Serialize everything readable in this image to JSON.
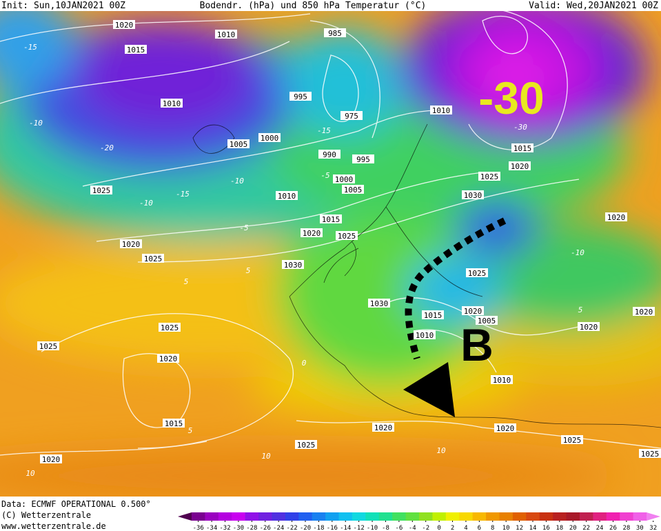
{
  "header": {
    "init": "Init: Sun,10JAN2021 00Z",
    "title": "Bodendr. (hPa) und 850 hPa Temperatur (°C)",
    "valid": "Valid: Wed,20JAN2021 00Z"
  },
  "annotations": {
    "temperature": "-30",
    "marker": "B"
  },
  "isobar_labels": [
    "1020",
    "1010",
    "1015",
    "985",
    "1010",
    "995",
    "975",
    "1010",
    "1005",
    "1000",
    "990",
    "995",
    "1015",
    "1020",
    "1025",
    "1000",
    "1005",
    "1010",
    "1025",
    "1030",
    "1020",
    "1015",
    "1020",
    "1025",
    "1020",
    "1025",
    "1030",
    "1025",
    "1030",
    "1020",
    "1015",
    "1005",
    "1020",
    "1020",
    "1010",
    "1025",
    "1025",
    "1020",
    "1010",
    "1015",
    "1020",
    "1025",
    "1020",
    "1025",
    "1020",
    "1025"
  ],
  "temperature_labels": [
    "-15",
    "-10",
    "-20",
    "-15",
    "-10",
    "-10",
    "-5",
    "-5",
    "-15",
    "-30",
    "-10",
    "5",
    "5",
    "5",
    "10",
    "10",
    "10",
    "0",
    "5"
  ],
  "footer": {
    "data": "Data: ECMWF OPERATIONAL 0.500°",
    "copyright": "(C) Wetterzentrale",
    "url": "www.wetterzentrale.de"
  },
  "colorbar": {
    "ticks": [
      -36,
      -34,
      -32,
      -30,
      -28,
      -26,
      -24,
      -22,
      -20,
      -18,
      -16,
      -14,
      -12,
      -10,
      -8,
      -6,
      -4,
      -2,
      0,
      2,
      4,
      6,
      8,
      10,
      12,
      14,
      16,
      18,
      20,
      22,
      24,
      26,
      28,
      30,
      32
    ],
    "colors": [
      "#500050",
      "#7a0090",
      "#9a00c0",
      "#b400e0",
      "#c800f0",
      "#9010e8",
      "#7020e0",
      "#5030e0",
      "#3040e8",
      "#2060f0",
      "#1880f0",
      "#10a0f0",
      "#10c0f0",
      "#10d8e0",
      "#10e0b8",
      "#20e090",
      "#40e060",
      "#60e040",
      "#90e020",
      "#c0f000",
      "#f0f000",
      "#f8d800",
      "#f8b800",
      "#f09800",
      "#e88000",
      "#e06000",
      "#d84810",
      "#c83010",
      "#b82020",
      "#a81828",
      "#c02050",
      "#e02080",
      "#f020b0",
      "#f040d0",
      "#f060e8",
      "#f080f0"
    ]
  }
}
